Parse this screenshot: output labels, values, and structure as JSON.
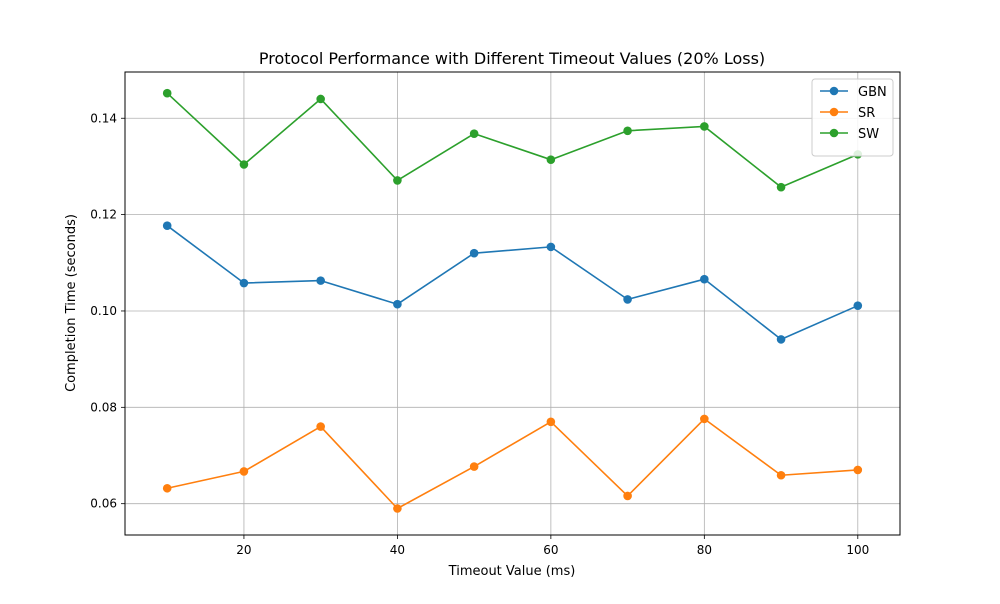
{
  "chart_data": {
    "type": "line",
    "title": "Protocol Performance with Different Timeout Values (20% Loss)",
    "xlabel": "Timeout Value (ms)",
    "ylabel": "Completion Time (seconds)",
    "x": [
      10,
      20,
      30,
      40,
      50,
      60,
      70,
      80,
      90,
      100
    ],
    "xlim": [
      4.5,
      105.5
    ],
    "ylim": [
      0.0535,
      0.1496
    ],
    "xticks": [
      20,
      40,
      60,
      80,
      100
    ],
    "yticks": [
      0.06,
      0.08,
      0.1,
      0.12,
      0.14
    ],
    "xtick_labels": [
      "20",
      "40",
      "60",
      "80",
      "100"
    ],
    "ytick_labels": [
      "0.06",
      "0.08",
      "0.10",
      "0.12",
      "0.14"
    ],
    "grid": true,
    "legend_position": "top-right",
    "series": [
      {
        "name": "GBN",
        "color": "#1f77b4",
        "values": [
          0.1177,
          0.1058,
          0.1063,
          0.1014,
          0.112,
          0.1133,
          0.1024,
          0.1066,
          0.0941,
          0.1011
        ]
      },
      {
        "name": "SR",
        "color": "#ff7f0e",
        "values": [
          0.0632,
          0.0667,
          0.076,
          0.059,
          0.0677,
          0.077,
          0.0616,
          0.0776,
          0.0659,
          0.067
        ]
      },
      {
        "name": "SW",
        "color": "#2ca02c",
        "values": [
          0.1452,
          0.1304,
          0.144,
          0.1271,
          0.1368,
          0.1314,
          0.1374,
          0.1383,
          0.1257,
          0.1325
        ]
      }
    ]
  }
}
